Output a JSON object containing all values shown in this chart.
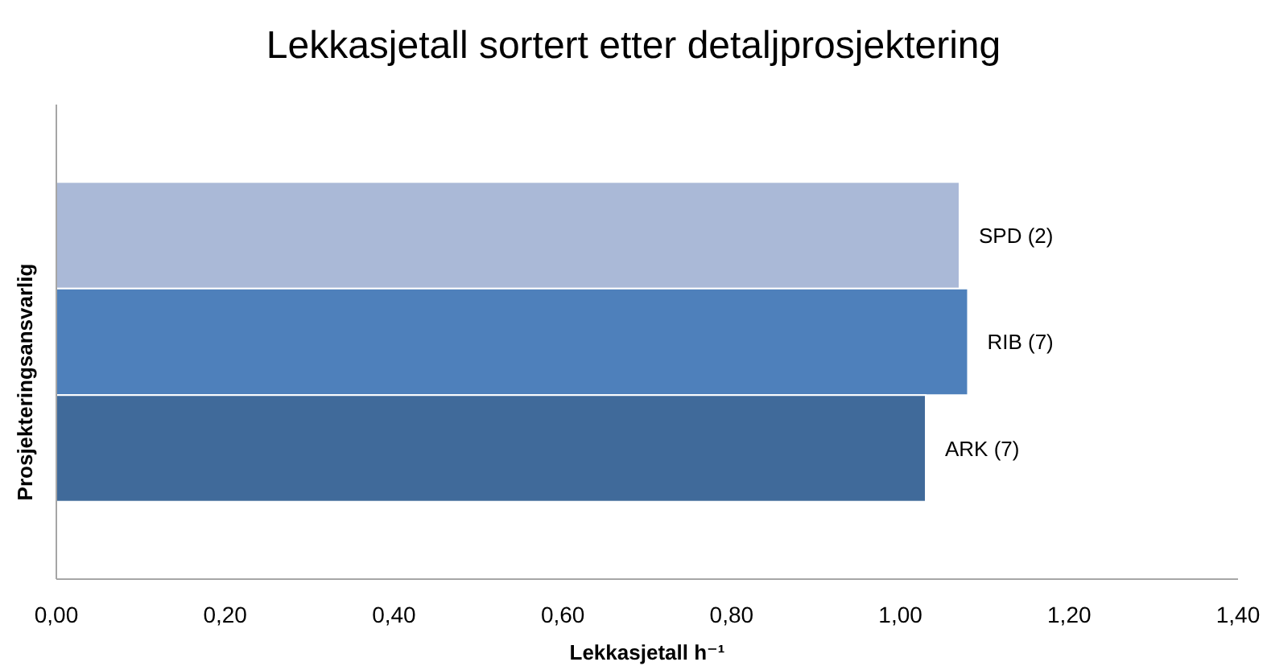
{
  "chart_data": {
    "type": "bar",
    "orientation": "horizontal",
    "title": "Lekkasjetall sortert etter detaljprosjektering",
    "xlabel": "Lekkasjetall h⁻¹",
    "ylabel": "Prosjekteringsansvarlig",
    "categories": [
      "SPD (2)",
      "RIB (7)",
      "ARK (7)"
    ],
    "values": [
      1.07,
      1.08,
      1.03
    ],
    "colors": [
      "#aab9d7",
      "#4e80bb",
      "#406a9a"
    ],
    "xlim": [
      0,
      1.4
    ],
    "xticks": [
      {
        "value": 0,
        "label": "0,00"
      },
      {
        "value": 0.2,
        "label": "0,20"
      },
      {
        "value": 0.4,
        "label": "0,40"
      },
      {
        "value": 0.6,
        "label": "0,60"
      },
      {
        "value": 0.8,
        "label": "0,80"
      },
      {
        "value": 1.0,
        "label": "1,00"
      },
      {
        "value": 1.2,
        "label": "1,20"
      },
      {
        "value": 1.4,
        "label": "1,40"
      }
    ],
    "grid": false
  }
}
